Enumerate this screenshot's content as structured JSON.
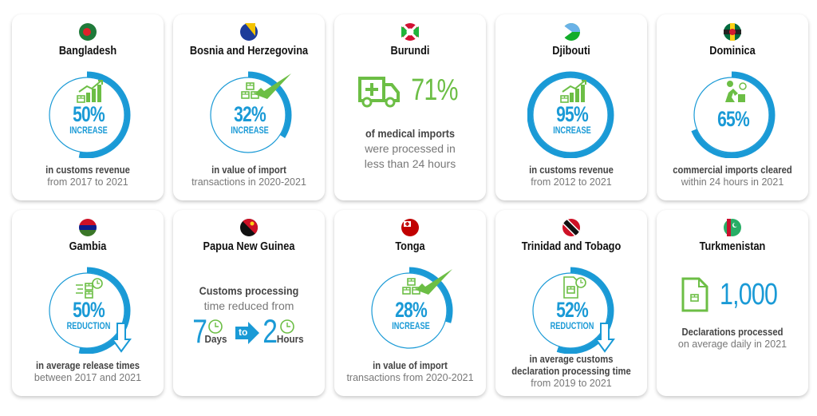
{
  "colors": {
    "blue": "#1a9ad6",
    "green": "#6cbe45",
    "card_bg": "#ffffff"
  },
  "cards": [
    {
      "country": "Bangladesh",
      "flag": "bangladesh",
      "type": "ring",
      "value": "50%",
      "fraction": 0.5,
      "sub": "INCREASE",
      "icon": "growth-chart-icon",
      "bold": [
        "in customs revenue"
      ],
      "light": [
        "from 2017 to 2021"
      ]
    },
    {
      "country": "Bosnia and Herzegovina",
      "flag": "bosnia",
      "type": "ring",
      "value": "32%",
      "fraction": 0.32,
      "sub": "INCREASE",
      "icon": "boxes-check-icon",
      "bold": [
        "in value of import"
      ],
      "light": [
        "transactions in 2020-2021"
      ]
    },
    {
      "country": "Burundi",
      "flag": "burundi",
      "type": "burundi",
      "value": "71%",
      "icon": "ambulance-icon",
      "bold": [
        "of medical imports"
      ],
      "light": [
        "were processed in",
        "less than 24 hours"
      ]
    },
    {
      "country": "Djibouti",
      "flag": "djibouti",
      "type": "ring",
      "value": "95%",
      "fraction": 0.95,
      "sub": "INCREASE",
      "icon": "growth-chart-icon",
      "bold": [
        "in customs revenue"
      ],
      "light": [
        "from 2012 to 2021"
      ]
    },
    {
      "country": "Dominica",
      "flag": "dominica",
      "type": "ring",
      "value": "65%",
      "fraction": 0.65,
      "sub": "",
      "icon": "worker-boxes-icon",
      "bold": [
        "commercial imports cleared"
      ],
      "light": [
        "within 24 hours in 2021"
      ]
    },
    {
      "country": "Gambia",
      "flag": "gambia",
      "type": "ring",
      "value": "50%",
      "fraction": 0.5,
      "sub": "REDUCTION",
      "icon": "fast-boxes-clock-icon",
      "down": true,
      "bold": [
        "in average release times"
      ],
      "light": [
        "between 2017 and 2021"
      ]
    },
    {
      "country": "Papua New Guinea",
      "flag": "png",
      "type": "png",
      "bold": [
        "Customs processing"
      ],
      "light": [
        "time reduced from"
      ],
      "from_value": "7",
      "from_unit": "Days",
      "to_label": "to",
      "to_value": "2",
      "to_unit": "Hours"
    },
    {
      "country": "Tonga",
      "flag": "tonga",
      "type": "ring",
      "value": "28%",
      "fraction": 0.28,
      "sub": "INCREASE",
      "icon": "boxes-check-icon",
      "bold": [
        "in value of import"
      ],
      "light": [
        "transactions from 2020-2021"
      ]
    },
    {
      "country": "Trinidad and Tobago",
      "flag": "trinidad",
      "type": "ring",
      "value": "52%",
      "fraction": 0.52,
      "sub": "REDUCTION",
      "icon": "document-clock-icon",
      "down": true,
      "bold": [
        "in average customs",
        "declaration processing time"
      ],
      "light": [
        "from 2019 to 2021"
      ]
    },
    {
      "country": "Turkmenistan",
      "flag": "turkmenistan",
      "type": "turkmenistan",
      "value": "1,000",
      "icon": "document-box-icon",
      "bold": [
        "Declarations processed"
      ],
      "light": [
        "on average daily in 2021"
      ]
    }
  ]
}
